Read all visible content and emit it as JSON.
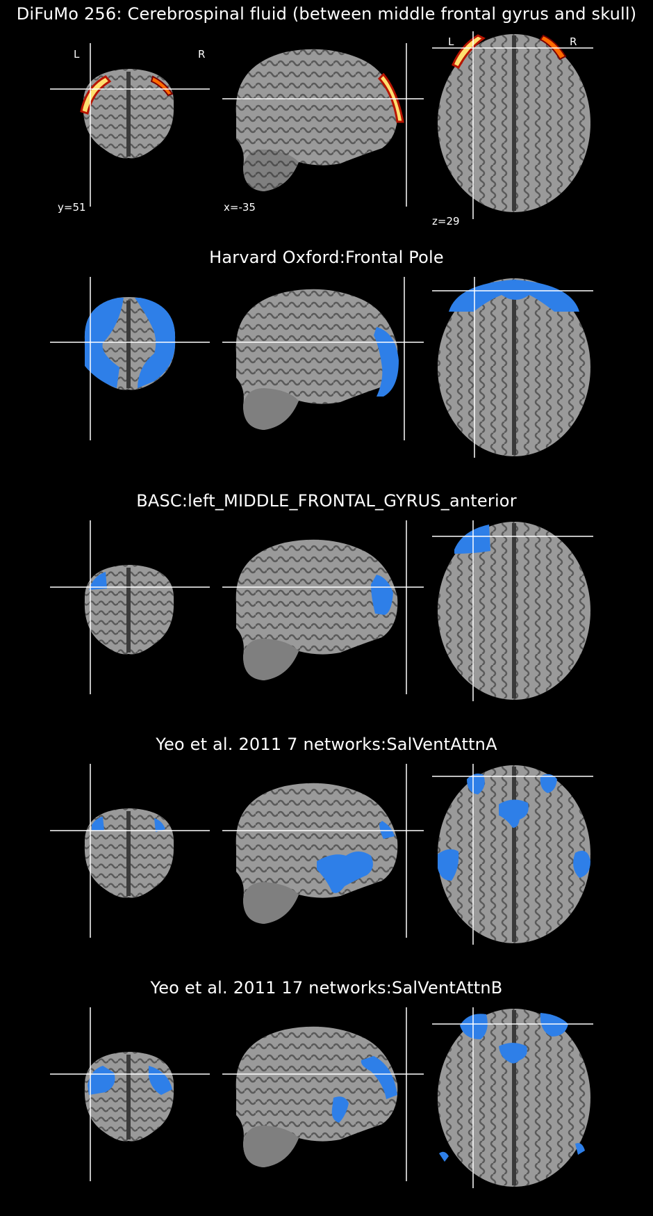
{
  "panels": [
    {
      "title": "DiFuMo 256: Cerebrospinal fluid (between middle frontal gyrus and skull)",
      "overlay": "hot",
      "coords": [
        "y=51",
        "x=-35",
        "z=29"
      ],
      "orientation": [
        "L",
        "R",
        "L",
        "R"
      ]
    },
    {
      "title": "Harvard Oxford:Frontal Pole",
      "overlay": "blue"
    },
    {
      "title": "BASC:left_MIDDLE_FRONTAL_GYRUS_anterior",
      "overlay": "blue"
    },
    {
      "title": "Yeo et al. 2011 7 networks:SalVentAttnA",
      "overlay": "blue"
    },
    {
      "title": "Yeo et al. 2011 17 networks:SalVentAttnB",
      "overlay": "blue"
    }
  ],
  "colors": {
    "background": "#000000",
    "brain_gray": "#8f8f8f",
    "overlay_blue": "#2e7fe8",
    "overlay_hot": [
      "#7a0000",
      "#e83a00",
      "#ffc400",
      "#ffffcc"
    ],
    "crosshair": "#ffffff"
  }
}
